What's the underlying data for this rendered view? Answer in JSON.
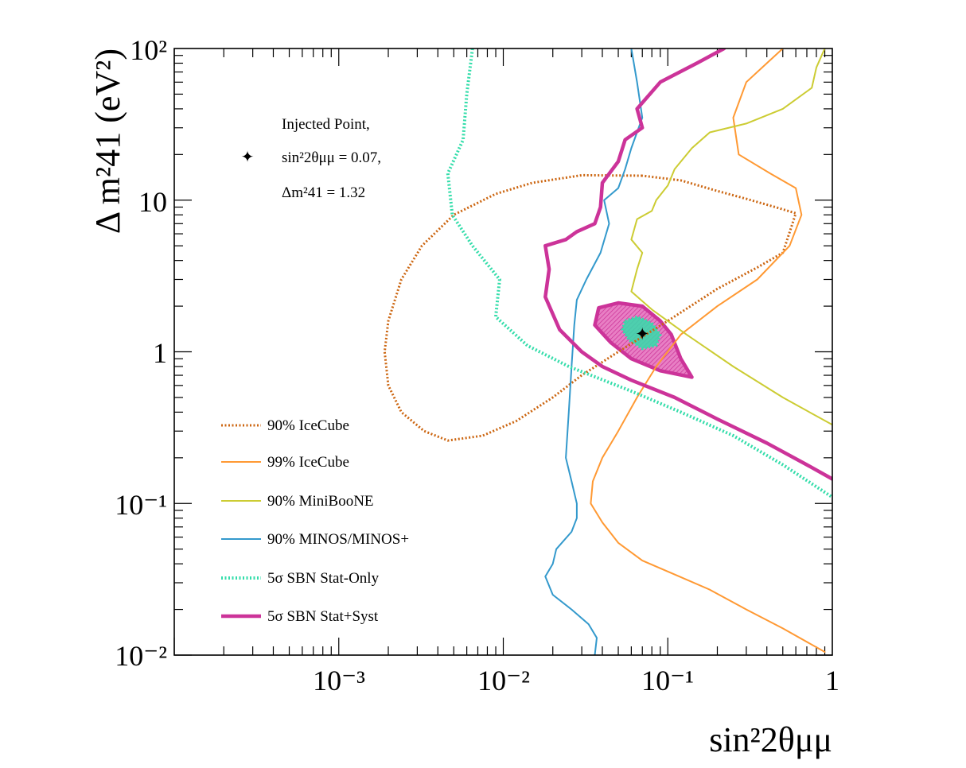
{
  "chart_data": {
    "type": "line",
    "xlabel": "sin²2θμμ",
    "ylabel": "Δ m²41 (eV²)",
    "xscale": "log",
    "yscale": "log",
    "xlim": [
      0.0001,
      1
    ],
    "ylim": [
      0.01,
      100
    ],
    "grid": false,
    "legend_position": "bottom-left",
    "x_tick_labels": [
      "10⁻³",
      "10⁻²",
      "10⁻¹",
      "1"
    ],
    "y_tick_labels": [
      "10⁻²",
      "10⁻¹",
      "1",
      "10",
      "10²"
    ],
    "injected_point": {
      "x": 0.07,
      "y": 1.32,
      "label_line1": "Injected Point,",
      "label_line2": "sin²2θμμ = 0.07,",
      "label_line3": "Δm²41 = 1.32"
    },
    "series": [
      {
        "name": "90% IceCube",
        "color": "#cc6611",
        "style": "dotted",
        "points": [
          [
            0.07,
            14.5
          ],
          [
            0.03,
            14.6
          ],
          [
            0.015,
            13.0
          ],
          [
            0.009,
            11.0
          ],
          [
            0.005,
            8.0
          ],
          [
            0.0032,
            5.0
          ],
          [
            0.0024,
            3.0
          ],
          [
            0.002,
            1.6
          ],
          [
            0.0019,
            1.0
          ],
          [
            0.002,
            0.6
          ],
          [
            0.0024,
            0.4
          ],
          [
            0.0033,
            0.3
          ],
          [
            0.0046,
            0.26
          ],
          [
            0.0075,
            0.28
          ],
          [
            0.012,
            0.35
          ],
          [
            0.02,
            0.5
          ],
          [
            0.03,
            0.7
          ],
          [
            0.05,
            1.0
          ],
          [
            0.1,
            1.6
          ],
          [
            0.2,
            2.6
          ],
          [
            0.35,
            3.6
          ],
          [
            0.5,
            4.5
          ],
          [
            0.56,
            6.5
          ],
          [
            0.6,
            8.2
          ],
          [
            0.45,
            9.0
          ],
          [
            0.3,
            10.2
          ],
          [
            0.2,
            11.5
          ],
          [
            0.12,
            13.5
          ],
          [
            0.07,
            14.5
          ]
        ]
      },
      {
        "name": "99% IceCube",
        "color": "#ff9933",
        "style": "solid",
        "points": [
          [
            0.9,
            0.0105
          ],
          [
            0.5,
            0.015
          ],
          [
            0.3,
            0.02
          ],
          [
            0.18,
            0.027
          ],
          [
            0.11,
            0.034
          ],
          [
            0.07,
            0.042
          ],
          [
            0.05,
            0.055
          ],
          [
            0.04,
            0.075
          ],
          [
            0.034,
            0.1
          ],
          [
            0.035,
            0.14
          ],
          [
            0.04,
            0.2
          ],
          [
            0.05,
            0.3
          ],
          [
            0.065,
            0.5
          ],
          [
            0.085,
            0.8
          ],
          [
            0.12,
            1.3
          ],
          [
            0.2,
            2.0
          ],
          [
            0.35,
            3.0
          ],
          [
            0.55,
            5.0
          ],
          [
            0.65,
            8.0
          ],
          [
            0.6,
            12.0
          ],
          [
            0.42,
            15.0
          ],
          [
            0.27,
            20.0
          ],
          [
            0.25,
            35.0
          ],
          [
            0.3,
            60.0
          ],
          [
            0.4,
            80.0
          ],
          [
            0.5,
            100.0
          ]
        ]
      },
      {
        "name": "90% MiniBooNE",
        "color": "#cccc33",
        "style": "solid",
        "points": [
          [
            1.0,
            0.33
          ],
          [
            0.5,
            0.5
          ],
          [
            0.25,
            0.8
          ],
          [
            0.13,
            1.3
          ],
          [
            0.08,
            1.9
          ],
          [
            0.06,
            2.5
          ],
          [
            0.065,
            3.5
          ],
          [
            0.07,
            4.5
          ],
          [
            0.06,
            5.5
          ],
          [
            0.065,
            7.5
          ],
          [
            0.08,
            8.5
          ],
          [
            0.085,
            10.0
          ],
          [
            0.1,
            12.5
          ],
          [
            0.11,
            16.0
          ],
          [
            0.14,
            22.0
          ],
          [
            0.18,
            28.0
          ],
          [
            0.3,
            32.0
          ],
          [
            0.5,
            40.0
          ],
          [
            0.75,
            55.0
          ],
          [
            0.8,
            75.0
          ],
          [
            0.9,
            100.0
          ]
        ]
      },
      {
        "name": "90% MINOS/MINOS+",
        "color": "#3399cc",
        "style": "solid",
        "points": [
          [
            0.036,
            0.01
          ],
          [
            0.037,
            0.013
          ],
          [
            0.033,
            0.016
          ],
          [
            0.026,
            0.02
          ],
          [
            0.02,
            0.025
          ],
          [
            0.018,
            0.033
          ],
          [
            0.02,
            0.04
          ],
          [
            0.021,
            0.05
          ],
          [
            0.026,
            0.065
          ],
          [
            0.028,
            0.08
          ],
          [
            0.028,
            0.1
          ],
          [
            0.026,
            0.14
          ],
          [
            0.024,
            0.2
          ],
          [
            0.025,
            0.4
          ],
          [
            0.026,
            0.8
          ],
          [
            0.027,
            1.5
          ],
          [
            0.028,
            2.2
          ],
          [
            0.032,
            3.0
          ],
          [
            0.039,
            4.5
          ],
          [
            0.044,
            7.0
          ],
          [
            0.041,
            10.0
          ],
          [
            0.05,
            12.0
          ],
          [
            0.055,
            16.0
          ],
          [
            0.06,
            22.0
          ],
          [
            0.07,
            35.0
          ],
          [
            0.065,
            60.0
          ],
          [
            0.06,
            100.0
          ]
        ]
      },
      {
        "name": "5σ SBN Stat-Only",
        "color": "#33ddaa",
        "style": "dotted",
        "points": [
          [
            0.0065,
            100.0
          ],
          [
            0.006,
            50.0
          ],
          [
            0.0057,
            25.0
          ],
          [
            0.0046,
            15.0
          ],
          [
            0.0049,
            8.0
          ],
          [
            0.0065,
            5.0
          ],
          [
            0.0095,
            3.0
          ],
          [
            0.009,
            1.7
          ],
          [
            0.014,
            1.1
          ],
          [
            0.025,
            0.8
          ],
          [
            0.06,
            0.55
          ],
          [
            0.12,
            0.4
          ],
          [
            0.25,
            0.28
          ],
          [
            0.5,
            0.18
          ],
          [
            1.0,
            0.11
          ]
        ]
      },
      {
        "name": "5σ SBN Stat+Syst",
        "color": "#cc3399",
        "style": "solid",
        "points": [
          [
            1.0,
            0.145
          ],
          [
            0.7,
            0.18
          ],
          [
            0.4,
            0.25
          ],
          [
            0.2,
            0.36
          ],
          [
            0.11,
            0.5
          ],
          [
            0.06,
            0.65
          ],
          [
            0.04,
            0.8
          ],
          [
            0.03,
            1.0
          ],
          [
            0.022,
            1.4
          ],
          [
            0.018,
            2.3
          ],
          [
            0.019,
            3.5
          ],
          [
            0.018,
            5.0
          ],
          [
            0.024,
            5.5
          ],
          [
            0.028,
            6.2
          ],
          [
            0.036,
            7.0
          ],
          [
            0.039,
            9.0
          ],
          [
            0.04,
            13.0
          ],
          [
            0.05,
            18.0
          ],
          [
            0.055,
            25.0
          ],
          [
            0.07,
            30.0
          ],
          [
            0.065,
            40.0
          ],
          [
            0.09,
            60.0
          ],
          [
            0.15,
            80.0
          ],
          [
            0.22,
            100.0
          ]
        ]
      }
    ],
    "filled_regions": [
      {
        "name": "5σ SBN Stat+Syst allowed",
        "color": "#cc3399",
        "points": [
          [
            0.038,
            1.95
          ],
          [
            0.05,
            2.1
          ],
          [
            0.07,
            2.0
          ],
          [
            0.09,
            1.6
          ],
          [
            0.105,
            1.3
          ],
          [
            0.12,
            0.9
          ],
          [
            0.14,
            0.68
          ],
          [
            0.09,
            0.75
          ],
          [
            0.06,
            0.9
          ],
          [
            0.045,
            1.15
          ],
          [
            0.036,
            1.5
          ],
          [
            0.038,
            1.95
          ]
        ]
      },
      {
        "name": "5σ SBN Stat-Only allowed",
        "color": "#33ddaa",
        "points": [
          [
            0.055,
            1.6
          ],
          [
            0.065,
            1.7
          ],
          [
            0.08,
            1.55
          ],
          [
            0.09,
            1.3
          ],
          [
            0.085,
            1.1
          ],
          [
            0.07,
            1.05
          ],
          [
            0.058,
            1.2
          ],
          [
            0.053,
            1.4
          ],
          [
            0.055,
            1.6
          ]
        ]
      }
    ]
  }
}
